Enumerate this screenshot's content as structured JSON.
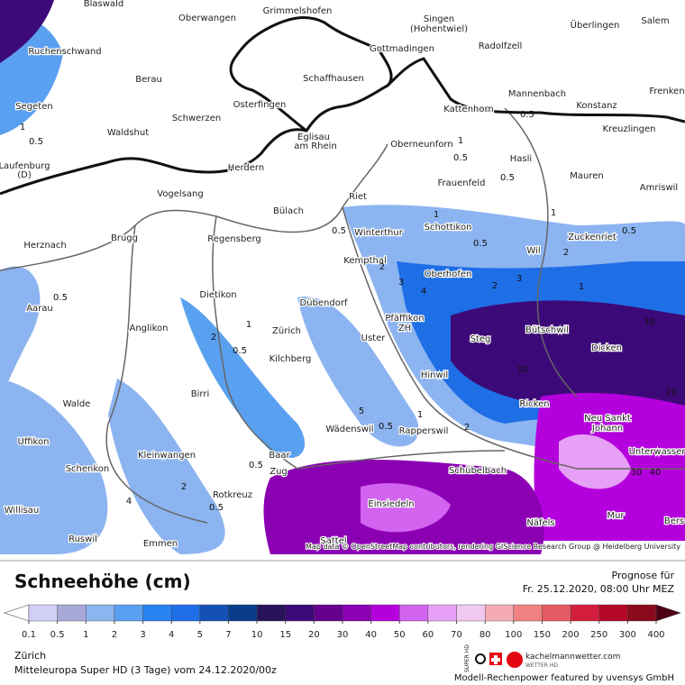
{
  "header": {
    "title": "Schneehöhe (cm)",
    "forecast_label": "Prognose für",
    "forecast_time": "Fr. 25.12.2020, 08:00 Uhr MEZ"
  },
  "map": {
    "attribution": "Map data © OpenStreetMap contributors, rendering GIScience Research Group @ Heidelberg University",
    "places": [
      "Blaswald",
      "Oberwangen",
      "Grimmelshofen",
      "Singen",
      "(Hohentwiel)",
      "Gottmadingen",
      "Radolfzell",
      "Überlingen",
      "Salem",
      "Ruchenschwand",
      "Berau",
      "Schaffhausen",
      "Frenken",
      "Segeten",
      "Osterfingen",
      "Schwerzen",
      "Mannenbach",
      "Kattenhorn",
      "Konstanz",
      "Kreuzlingen",
      "Waldshut",
      "Eglisau",
      "am Rhein",
      "Oberneunforn",
      "Hasli",
      "Laufenburg",
      "(D)",
      "Herdern",
      "Mauren",
      "Frauenfeld",
      "Amriswil",
      "Vogelsang",
      "Riet",
      "Bülach",
      "Schottikon",
      "Winterthur",
      "Herznach",
      "Brugg",
      "Regensberg",
      "Wil",
      "Zuckenriet",
      "Kempthal",
      "Oberhofen",
      "Aarau",
      "Dietikon",
      "Dübendorf",
      "Pfäffikon",
      "ZH",
      "Zürich",
      "Anglikon",
      "Uster",
      "Steg",
      "Bütschwil",
      "Dicken",
      "Kilchberg",
      "Hinwil",
      "Birri",
      "Walde",
      "Ricken",
      "Neu Sankt",
      "Johann",
      "Wädenswil",
      "Rapperswil",
      "Uffikon",
      "Unterwasser",
      "Baar",
      "Zug",
      "Kleinwangen",
      "Schenkon",
      "Schübelbach",
      "Rotkreuz",
      "Einsiedeln",
      "Willisau",
      "Näfels",
      "Mur",
      "Bers",
      "Ruswil",
      "Emmen",
      "Sattel"
    ],
    "contour_labels": [
      "1",
      "0.5",
      "0.5",
      "1",
      "0.5",
      "0.5",
      "1",
      "0.5",
      "0.5",
      "0.5",
      "1",
      "2",
      "0.5",
      "1",
      "0.5",
      "2",
      "1",
      "0.5",
      "2",
      "0.5",
      "0.5",
      "10",
      "10",
      "20",
      "30",
      "40",
      "5",
      "3",
      "4",
      "2",
      "2",
      "3",
      "1",
      "2",
      "4"
    ]
  },
  "legend": {
    "ticks": [
      0.1,
      0.5,
      1,
      2,
      3,
      4,
      5,
      7,
      10,
      15,
      20,
      30,
      40,
      50,
      60,
      70,
      80,
      100,
      150,
      200,
      250,
      300,
      400
    ],
    "colors": [
      "#ffffff",
      "#d0d0f4",
      "#a8a8d8",
      "#8cb4f0",
      "#5aa0f0",
      "#2882f0",
      "#1e6ee6",
      "#1450b4",
      "#0a3c8c",
      "#28145a",
      "#3c0a78",
      "#64008c",
      "#8c00b4",
      "#b400dc",
      "#d264f0",
      "#e6a0f5",
      "#f0c8f0",
      "#f5aab4",
      "#f08282",
      "#e65a64",
      "#d21e3c",
      "#b40a28",
      "#8c0a1e",
      "#500014"
    ]
  },
  "footer": {
    "location": "Zürich",
    "model": "Mitteleuropa Super HD (3 Tage) vom 24.12.2020/00z",
    "logo_text": "SUPER HD",
    "brand": "kachelmannwetter.com",
    "brand_sub": "WETTER HD",
    "credit": "Modell-Rechenpower featured by uvensys GmbH"
  }
}
